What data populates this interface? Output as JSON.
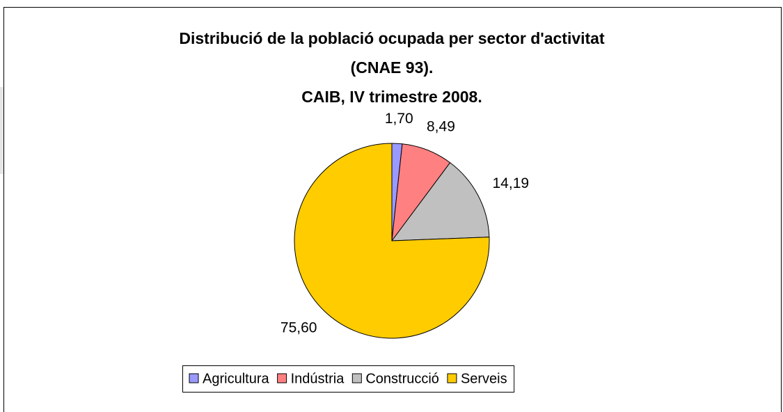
{
  "chart_data": {
    "type": "pie",
    "title": [
      "Distribució de la població ocupada per sector d'activitat",
      "(CNAE 93).",
      "CAIB, IV trimestre 2008."
    ],
    "categories": [
      "Agricultura",
      "Indústria",
      "Construcció",
      "Serveis"
    ],
    "values": [
      1.7,
      8.49,
      14.19,
      75.6
    ],
    "value_labels": [
      "1,70",
      "8,49",
      "14,19",
      "75,60"
    ],
    "colors": [
      "#9999ff",
      "#ff8080",
      "#c0c0c0",
      "#ffcc00"
    ],
    "legend": "bottom"
  }
}
